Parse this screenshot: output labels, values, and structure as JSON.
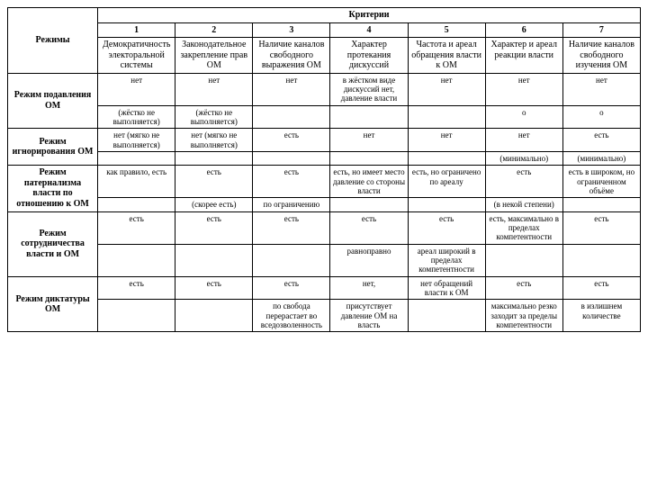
{
  "header": {
    "regimes": "Режимы",
    "criteria": "Критерии"
  },
  "crit_nums": [
    "1",
    "2",
    "3",
    "4",
    "5",
    "6",
    "7"
  ],
  "crit_labels": [
    "Демократичность электоральной системы",
    "Законодательное закрепление прав ОМ",
    "Наличие каналов свободного выражения ОМ",
    "Характер протекания дискуссий",
    "Частота и ареал обращения власти к ОМ",
    "Характер и ареал реакции власти",
    "Наличие каналов свободного изучения ОМ"
  ],
  "rows": [
    {
      "name": "Режим подавления ОМ",
      "line1": [
        "нет",
        "нет",
        "нет",
        "в жёстком виде дискуссий нет, давление власти",
        "нет",
        "нет",
        "нет"
      ],
      "line2": [
        "(жёстко не выполняется)",
        "(жёстко не выполняется)",
        "",
        "",
        "",
        "о",
        "о"
      ]
    },
    {
      "name": "Режим игнорирования ОМ",
      "line1": [
        "нет (мягко не выполняется)",
        "нет (мягко не выполняется)",
        "есть",
        "нет",
        "нет",
        "нет",
        "есть"
      ],
      "line2": [
        "",
        "",
        "",
        "",
        "",
        "(минимально)",
        "(минимально)"
      ]
    },
    {
      "name": "Режим патернализма власти по отношению к ОМ",
      "line1": [
        "как правило, есть",
        "есть",
        "есть",
        "есть, но имеет место давление со стороны власти",
        "есть, но ограничено по ареалу",
        "есть",
        "есть в широком, но ограниченном объёме"
      ],
      "line2": [
        "",
        "(скорее есть)",
        "по ограничению",
        "",
        "",
        "(в некой степени)",
        ""
      ]
    },
    {
      "name": "Режим сотрудничества власти и ОМ",
      "line1": [
        "есть",
        "есть",
        "есть",
        "есть",
        "есть",
        "есть, максимально в пределах компетентности",
        "есть"
      ],
      "line2": [
        "",
        "",
        "",
        "равноправно",
        "ареал широкий в пределах компетентности",
        "",
        ""
      ]
    },
    {
      "name": "Режим диктатуры ОМ",
      "line1": [
        "есть",
        "есть",
        "есть",
        "нет,",
        "нет обращений власти к ОМ",
        "есть",
        "есть"
      ],
      "line2": [
        "",
        "",
        "по свобода перерастает во вседозволенность",
        "присутствует давление ОМ на власть",
        "",
        "максимально резко заходит за пределы компетентности",
        "в излишнем количестве"
      ]
    }
  ]
}
